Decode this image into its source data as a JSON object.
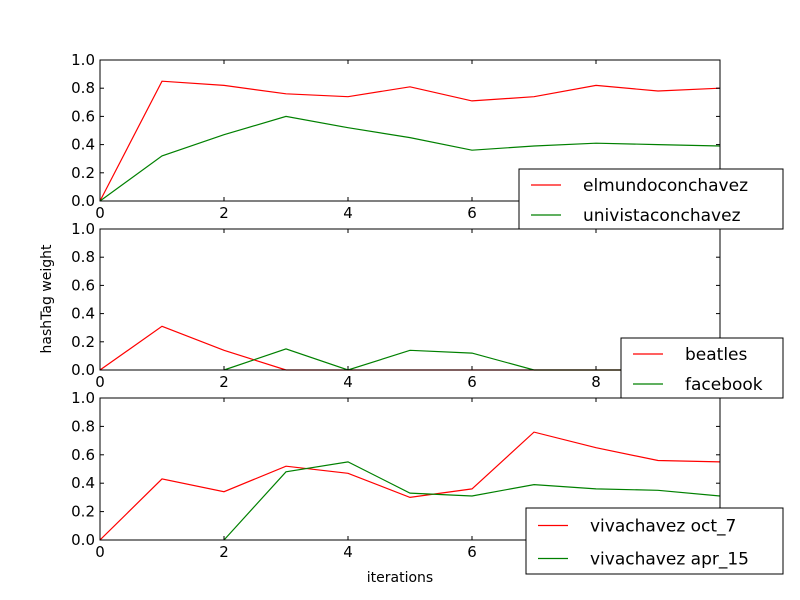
{
  "figure": {
    "ylabel": "hashTag weight",
    "xlabel": "iterations"
  },
  "chart_data": [
    {
      "type": "line",
      "x": [
        0,
        1,
        2,
        3,
        4,
        5,
        6,
        7,
        8,
        9,
        10
      ],
      "xlim": [
        0,
        10
      ],
      "ylim": [
        0,
        1.0
      ],
      "xticks": [
        "0",
        "2",
        "4",
        "6",
        "8"
      ],
      "yticks": [
        "0.0",
        "0.2",
        "0.4",
        "0.6",
        "0.8",
        "1.0"
      ],
      "legend": "lower-right",
      "series": [
        {
          "name": "elmundoconchavez",
          "color": "#ff0000",
          "values": [
            0,
            0.85,
            0.82,
            0.76,
            0.74,
            0.81,
            0.71,
            0.74,
            0.82,
            0.78,
            0.8
          ]
        },
        {
          "name": "univistaconchavez",
          "color": "#008000",
          "values": [
            0,
            0.32,
            0.47,
            0.6,
            0.52,
            0.45,
            0.36,
            0.39,
            0.41,
            0.4,
            0.39
          ]
        }
      ]
    },
    {
      "type": "line",
      "x": [
        0,
        1,
        2,
        3,
        4,
        5,
        6,
        7,
        8,
        9,
        10
      ],
      "xlim": [
        0,
        10
      ],
      "ylim": [
        0,
        1.0
      ],
      "xticks": [
        "0",
        "2",
        "4",
        "6",
        "8"
      ],
      "yticks": [
        "0.0",
        "0.2",
        "0.4",
        "0.6",
        "0.8",
        "1.0"
      ],
      "legend": "lower-right",
      "series": [
        {
          "name": "beatles",
          "color": "#ff0000",
          "values": [
            0,
            0.31,
            0.14,
            0,
            0,
            0,
            0,
            0,
            0,
            0,
            0
          ]
        },
        {
          "name": "facebook",
          "color": "#008000",
          "values": [
            null,
            null,
            0,
            0.15,
            0,
            0.14,
            0.12,
            0,
            0,
            0,
            0
          ]
        }
      ]
    },
    {
      "type": "line",
      "x": [
        0,
        1,
        2,
        3,
        4,
        5,
        6,
        7,
        8,
        9,
        10
      ],
      "xlim": [
        0,
        10
      ],
      "ylim": [
        0,
        1.0
      ],
      "xticks": [
        "0",
        "2",
        "4",
        "6",
        "8"
      ],
      "yticks": [
        "0.0",
        "0.2",
        "0.4",
        "0.6",
        "0.8",
        "1.0"
      ],
      "legend": "lower-right",
      "series": [
        {
          "name": "vivachavez oct_7",
          "color": "#ff0000",
          "values": [
            0,
            0.43,
            0.34,
            0.52,
            0.47,
            0.3,
            0.36,
            0.76,
            0.65,
            0.56,
            0.55
          ]
        },
        {
          "name": "vivachavez apr_15",
          "color": "#008000",
          "values": [
            null,
            null,
            0,
            0.48,
            0.55,
            0.33,
            0.31,
            0.39,
            0.36,
            0.35,
            0.31
          ]
        }
      ]
    }
  ]
}
